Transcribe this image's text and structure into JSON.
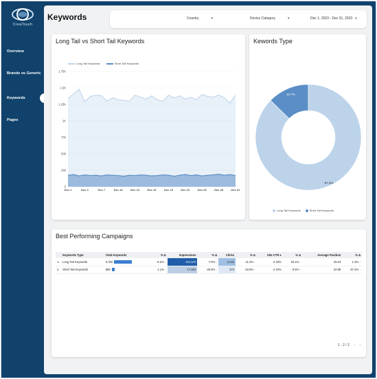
{
  "sidebar": {
    "logo_text": "CreaTouch",
    "items": [
      {
        "label": "Overview",
        "active": false
      },
      {
        "label": "Brands vs Generic",
        "active": false
      },
      {
        "label": "Keywords",
        "active": true
      },
      {
        "label": "Pages",
        "active": false
      }
    ]
  },
  "header": {
    "title": "Keywords",
    "filters": [
      {
        "label": "Country"
      },
      {
        "label": "Device Category"
      },
      {
        "label": "Dec 1, 2023 - Dec 31, 2023"
      }
    ]
  },
  "line_card": {
    "title": "Long Tail vs Short Tail Keywords"
  },
  "donut_card": {
    "title": "Kewords Type"
  },
  "campaigns": {
    "title": "Best Performing Campaigns",
    "columns": [
      "Keywords Type",
      "Total Keywords",
      "% Δ",
      "Impressions",
      "% Δ",
      "Clicks",
      "% Δ",
      "Site CTR ▾",
      "% Δ",
      "Average Position",
      "% Δ"
    ],
    "rows": [
      {
        "idx": "1.",
        "type": "Long Tail Keywords",
        "total": "5,760",
        "total_bar": 1.0,
        "total_delta": "-5.3%",
        "impressions": "101,572",
        "imp_bar": 1.0,
        "imp_delta": "-7.5%",
        "clicks": "2,231",
        "click_bar": 1.0,
        "clicks_delta": "11.3%",
        "ctr": "2.19%",
        "ctr_delta": "20.1%",
        "avg_pos": "25.24",
        "avg_delta": "1.3%"
      },
      {
        "idx": "2.",
        "type": "Short Tail Keywords",
        "total": "999",
        "total_bar": 0.17,
        "total_delta": "1.1%",
        "impressions": "17,842",
        "imp_bar": 0.18,
        "imp_delta": "-25.9%",
        "clicks": "374",
        "click_bar": 0.17,
        "clicks_delta": "-18.9%",
        "ctr": "2.10%",
        "ctr_delta": "9.5%",
        "avg_pos": "20.69",
        "avg_delta": "57.3%"
      }
    ],
    "pager": "1 - 2 / 2",
    "prev": "‹",
    "next": "›"
  },
  "colors": {
    "long_tail": "#bcd3ea",
    "short_tail": "#5b8ec6",
    "sidebar": "#10426b",
    "bar": "#3a7fd0"
  },
  "chart_data": [
    {
      "type": "area",
      "title": "Long Tail vs Short Tail Keywords",
      "x": [
        "Dec 1",
        "Dec 2",
        "Dec 3",
        "Dec 4",
        "Dec 5",
        "Dec 6",
        "Dec 7",
        "Dec 8",
        "Dec 9",
        "Dec 10",
        "Dec 11",
        "Dec 12",
        "Dec 13",
        "Dec 14",
        "Dec 15",
        "Dec 16",
        "Dec 17",
        "Dec 18",
        "Dec 19",
        "Dec 20",
        "Dec 21",
        "Dec 22",
        "Dec 23",
        "Dec 24",
        "Dec 25",
        "Dec 26",
        "Dec 27",
        "Dec 28",
        "Dec 29",
        "Dec 30",
        "Dec 31"
      ],
      "x_ticks": [
        "Dec 1",
        "Dec 4",
        "Dec 7",
        "Dec 10",
        "Dec 13",
        "Dec 16",
        "Dec 19",
        "Dec 22",
        "Dec 25",
        "Dec 28",
        "Dec 31"
      ],
      "y_ticks": [
        "0",
        "250",
        "500",
        "750",
        "1K",
        "1.25K",
        "1.5K",
        "1.75K"
      ],
      "ylim": [
        0,
        1750
      ],
      "series": [
        {
          "name": "Long Tail Keywords",
          "values": [
            1340,
            1410,
            1480,
            1290,
            1370,
            1390,
            1380,
            1300,
            1350,
            1320,
            1310,
            1300,
            1390,
            1360,
            1330,
            1380,
            1320,
            1300,
            1390,
            1350,
            1380,
            1330,
            1360,
            1320,
            1400,
            1370,
            1360,
            1390,
            1350,
            1270,
            1390
          ]
        },
        {
          "name": "Short Tail Keywords",
          "values": [
            175,
            185,
            165,
            180,
            170,
            175,
            165,
            180,
            175,
            170,
            160,
            175,
            170,
            180,
            175,
            165,
            170,
            180,
            175,
            160,
            175,
            185,
            170,
            180,
            165,
            175,
            180,
            190,
            175,
            185,
            170
          ]
        }
      ],
      "legend": "top-left"
    },
    {
      "type": "pie",
      "title": "Kewords Type",
      "labels": [
        "Long Tail Keywords",
        "Short Tail Keywords"
      ],
      "values": [
        87.3,
        12.7
      ],
      "value_labels": [
        "87.3%",
        "12.7%"
      ],
      "legend": "bottom"
    }
  ]
}
